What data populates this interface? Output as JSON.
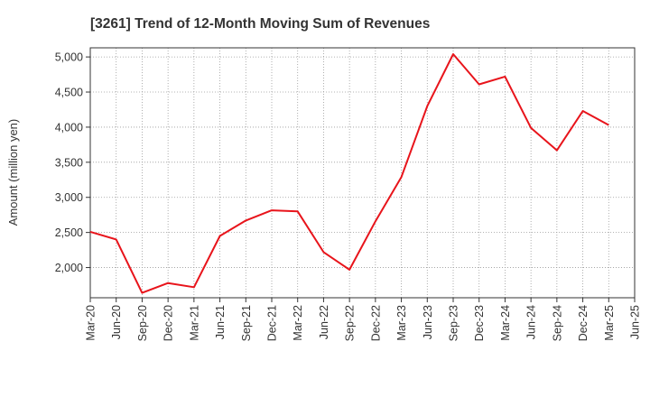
{
  "chart_data": {
    "type": "line",
    "title": "[3261]  Trend of 12-Month Moving Sum of Revenues",
    "xlabel": "",
    "ylabel": "Amount (million yen)",
    "x_ticks": [
      "Mar-20",
      "Jun-20",
      "Sep-20",
      "Dec-20",
      "Mar-21",
      "Jun-21",
      "Sep-21",
      "Dec-21",
      "Mar-22",
      "Jun-22",
      "Sep-22",
      "Dec-22",
      "Mar-23",
      "Jun-23",
      "Sep-23",
      "Dec-23",
      "Mar-24",
      "Jun-24",
      "Sep-24",
      "Dec-24",
      "Mar-25",
      "Jun-25"
    ],
    "y_ticks": [
      "2,000",
      "2,500",
      "3,000",
      "3,500",
      "4,000",
      "4,500",
      "5,000"
    ],
    "y_tick_values": [
      2000,
      2500,
      3000,
      3500,
      4000,
      4500,
      5000
    ],
    "ylim": [
      1570,
      5130
    ],
    "grid": true,
    "line_color": "#e8141b",
    "series": [
      {
        "x": [
          "Mar-20",
          "Jun-20",
          "Sep-20",
          "Dec-20",
          "Mar-21",
          "Jun-21",
          "Sep-21",
          "Dec-21",
          "Mar-22",
          "Jun-22",
          "Sep-22",
          "Dec-22",
          "Mar-23",
          "Jun-23",
          "Sep-23",
          "Dec-23",
          "Mar-24",
          "Jun-24",
          "Sep-24",
          "Dec-24",
          "Mar-25"
        ],
        "values": [
          2510,
          2400,
          1640,
          1780,
          1720,
          2450,
          2670,
          2815,
          2800,
          2220,
          1970,
          2660,
          3290,
          4300,
          5040,
          4610,
          4720,
          3990,
          3670,
          4230,
          4030
        ]
      }
    ]
  }
}
